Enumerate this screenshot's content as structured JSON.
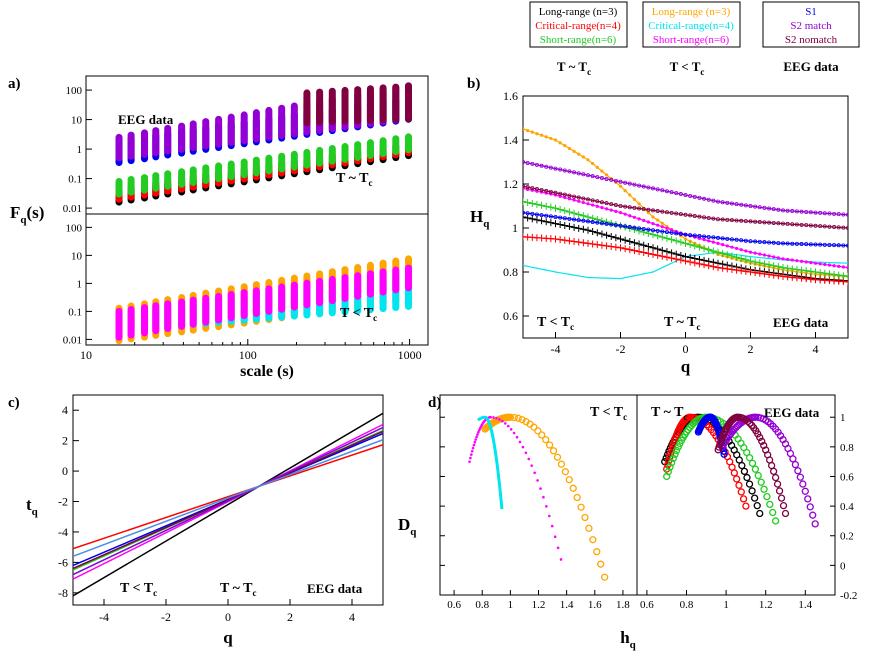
{
  "legend": {
    "t_sim": {
      "items": [
        {
          "label": "Long-range (n=3)",
          "color": "#000000"
        },
        {
          "label": "Critical-range(n=4)",
          "color": "#ff0000"
        },
        {
          "label": "Short-range(n=6)",
          "color": "#22cc22"
        }
      ],
      "caption_main": "T ~ T",
      "caption_sub": "c"
    },
    "t_low": {
      "items": [
        {
          "label": "Long-range (n=3)",
          "color": "#ffa500"
        },
        {
          "label": "Critical-range(n=4)",
          "color": "#00e5ee"
        },
        {
          "label": "Short-range(n=6)",
          "color": "#ff00ff"
        }
      ],
      "caption_main": "T < T",
      "caption_sub": "c"
    },
    "eeg": {
      "items": [
        {
          "label": "S1",
          "color": "#0000ee"
        },
        {
          "label": "S2 match",
          "color": "#9400d3"
        },
        {
          "label": "S2 nomatch",
          "color": "#800040"
        }
      ],
      "caption": "EEG data"
    }
  },
  "panel_labels": {
    "a": "a)",
    "b": "b)",
    "c": "c)",
    "d": "d)"
  },
  "chart_data": [
    {
      "id": "a",
      "type": "scatter",
      "xscale": "log",
      "yscale": "log",
      "xlabel": "scale (s)",
      "ylabel_main": "F",
      "ylabel_sub": "q",
      "ylabel_tail": "(s)",
      "xticks": [
        "10",
        "100",
        "1000"
      ],
      "scales": [
        16,
        19,
        23,
        27,
        32,
        39,
        46,
        55,
        66,
        79,
        95,
        113,
        135,
        162,
        194,
        232,
        278,
        333,
        399,
        478,
        573,
        686,
        822,
        985
      ],
      "top": {
        "yticks": [
          "0.01",
          "0.1",
          "1",
          "10",
          "100"
        ],
        "annotations": {
          "eeg": "EEG data",
          "temp_main": "T ~ T",
          "temp_sub": "c"
        },
        "series": [
          {
            "name": "S1",
            "color": "#0000ee",
            "x_from": 16,
            "min": [
              0.35,
              10.2
            ],
            "max": [
              1.9,
              52
            ]
          },
          {
            "name": "S2 match",
            "color": "#9400d3",
            "x_from": 16,
            "min": [
              0.5,
              11
            ],
            "max": [
              2.5,
              140
            ]
          },
          {
            "name": "S2 nomatch",
            "color": "#800040",
            "x_from": 200,
            "min": [
              4.5,
              10.5
            ],
            "max": [
              30,
              135
            ]
          },
          {
            "name": "Long-range (n=3)",
            "color": "#000000",
            "x_from": 16,
            "min": [
              0.016,
              0.6
            ],
            "max": [
              0.035,
              0.85
            ]
          },
          {
            "name": "Critical-range(n=4)",
            "color": "#ff0000",
            "x_from": 16,
            "min": [
              0.02,
              0.75
            ],
            "max": [
              0.045,
              1.5
            ]
          },
          {
            "name": "Short-range(n=6)",
            "color": "#22cc22",
            "x_from": 16,
            "min": [
              0.03,
              0.95
            ],
            "max": [
              0.08,
              2.6
            ]
          }
        ]
      },
      "bottom": {
        "yticks": [
          "0.01",
          "0.1",
          "1",
          "10",
          "100"
        ],
        "annotations": {
          "temp_main": "T < T",
          "temp_sub": "c"
        },
        "series": [
          {
            "name": "Long-range (n=3)",
            "color": "#ffa500",
            "x_from": 16,
            "min": [
              0.009,
              0.25
            ],
            "max": [
              0.13,
              7.5
            ]
          },
          {
            "name": "Critical-range(n=4)",
            "color": "#00e5ee",
            "x_from": 16,
            "min": [
              0.02,
              0.15
            ],
            "max": [
              0.07,
              1.8
            ]
          },
          {
            "name": "Short-range(n=6)",
            "color": "#ff00ff",
            "x_from": 16,
            "min": [
              0.012,
              0.7
            ],
            "max": [
              0.1,
              3.5
            ]
          }
        ]
      }
    },
    {
      "id": "b",
      "type": "line",
      "xlabel": "q",
      "ylabel_main": "H",
      "ylabel_sub": "q",
      "xlim": [
        -5,
        5
      ],
      "ylim": [
        0.5,
        1.6
      ],
      "xticks": [
        -4,
        -2,
        0,
        2,
        4
      ],
      "yticks": [
        "0.6",
        "0.8",
        "1",
        "1.2",
        "1.4",
        "1.6"
      ],
      "annotations": {
        "left_main": "T < T",
        "left_sub": "c",
        "mid_main": "T ~ T",
        "mid_sub": "c",
        "right": "EEG data"
      },
      "series": [
        {
          "name": "Long-range T<Tc",
          "color": "#ffa500",
          "marker": "dot",
          "x": [
            -5,
            -4,
            -3,
            -2,
            -1,
            0,
            1,
            2,
            3,
            4,
            5
          ],
          "y": [
            1.45,
            1.4,
            1.31,
            1.19,
            1.05,
            0.95,
            0.88,
            0.84,
            0.81,
            0.79,
            0.78
          ]
        },
        {
          "name": "Critical-range T<Tc",
          "color": "#00e5ee",
          "marker": "none",
          "x": [
            -5,
            -4,
            -3,
            -2,
            -1,
            0,
            1,
            2,
            3,
            4,
            5
          ],
          "y": [
            0.83,
            0.8,
            0.775,
            0.77,
            0.8,
            0.87,
            0.89,
            0.87,
            0.855,
            0.845,
            0.84
          ]
        },
        {
          "name": "Short-range T<Tc",
          "color": "#ff00ff",
          "marker": "dot",
          "x": [
            -5,
            -4,
            -3,
            -2,
            -1,
            0,
            1,
            2,
            3,
            4,
            5
          ],
          "y": [
            1.18,
            1.15,
            1.11,
            1.07,
            1.02,
            0.97,
            0.93,
            0.89,
            0.86,
            0.84,
            0.82
          ]
        },
        {
          "name": "Long-range T~Tc",
          "color": "#000000",
          "marker": "plus",
          "x": [
            -5,
            -4,
            -3,
            -2,
            -1,
            0,
            1,
            2,
            3,
            4,
            5
          ],
          "y": [
            1.05,
            1.02,
            0.99,
            0.95,
            0.91,
            0.87,
            0.84,
            0.81,
            0.79,
            0.77,
            0.76
          ]
        },
        {
          "name": "Critical-range T~Tc",
          "color": "#ff0000",
          "marker": "plus",
          "x": [
            -5,
            -4,
            -3,
            -2,
            -1,
            0,
            1,
            2,
            3,
            4,
            5
          ],
          "y": [
            0.96,
            0.95,
            0.93,
            0.91,
            0.88,
            0.85,
            0.82,
            0.8,
            0.78,
            0.765,
            0.755
          ]
        },
        {
          "name": "Short-range T~Tc",
          "color": "#22cc22",
          "marker": "plus",
          "x": [
            -5,
            -4,
            -3,
            -2,
            -1,
            0,
            1,
            2,
            3,
            4,
            5
          ],
          "y": [
            1.12,
            1.09,
            1.05,
            1.01,
            0.97,
            0.93,
            0.89,
            0.85,
            0.82,
            0.8,
            0.78
          ]
        },
        {
          "name": "S1",
          "color": "#0000ee",
          "marker": "circle",
          "x": [
            -5,
            -4,
            -3,
            -2,
            -1,
            0,
            1,
            2,
            3,
            4,
            5
          ],
          "y": [
            1.07,
            1.05,
            1.03,
            1.01,
            0.99,
            0.97,
            0.955,
            0.94,
            0.93,
            0.925,
            0.92
          ]
        },
        {
          "name": "S2 match",
          "color": "#9400d3",
          "marker": "circle",
          "x": [
            -5,
            -4,
            -3,
            -2,
            -1,
            0,
            1,
            2,
            3,
            4,
            5
          ],
          "y": [
            1.3,
            1.27,
            1.24,
            1.21,
            1.18,
            1.15,
            1.12,
            1.1,
            1.08,
            1.07,
            1.06
          ]
        },
        {
          "name": "S2 nomatch",
          "color": "#800040",
          "marker": "circle",
          "x": [
            -5,
            -4,
            -3,
            -2,
            -1,
            0,
            1,
            2,
            3,
            4,
            5
          ],
          "y": [
            1.19,
            1.16,
            1.13,
            1.1,
            1.08,
            1.06,
            1.04,
            1.03,
            1.02,
            1.01,
            1.0
          ]
        }
      ]
    },
    {
      "id": "c",
      "type": "line",
      "xlabel": "q",
      "ylabel_main": "t",
      "ylabel_sub": "q",
      "xlim": [
        -5,
        5
      ],
      "ylim": [
        -8.8,
        5
      ],
      "xticks": [
        -4,
        -2,
        0,
        2,
        4
      ],
      "yticks": [
        -8,
        -6,
        -4,
        -2,
        0,
        2,
        4
      ],
      "annotations": {
        "left_main": "T < T",
        "left_sub": "c",
        "mid_main": "T ~ T",
        "mid_sub": "c",
        "right": "EEG data"
      },
      "pivot": [
        1,
        -1
      ],
      "series": [
        {
          "name": "Long-range",
          "color": "#000000",
          "y_at_min": -8.2
        },
        {
          "name": "Short-range",
          "color": "#ff00ff",
          "y_at_min": -7.1
        },
        {
          "name": "Critical-range",
          "color": "#00e5ee",
          "y_at_min": -6.8
        },
        {
          "name": "Green",
          "color": "#22cc22",
          "y_at_min": -6.5
        },
        {
          "name": "S1",
          "color": "#0000ee",
          "y_at_min": -6.2
        },
        {
          "name": "S2 nomatch",
          "color": "#800040",
          "y_at_min": -6.4
        },
        {
          "name": "S2 match",
          "color": "#9400d3",
          "y_at_min": -6.8
        },
        {
          "name": "Critical-range T~Tc",
          "color": "#ff0000",
          "y_at_min": -5.1
        },
        {
          "name": "Light blue",
          "color": "#4a90e2",
          "y_at_min": -5.6
        }
      ]
    },
    {
      "id": "d",
      "type": "scatter",
      "xlabel_main": "h",
      "xlabel_sub": "q",
      "ylabel_main": "D",
      "ylabel_sub": "q",
      "left": {
        "xlim": [
          0.5,
          1.9
        ],
        "xticks": [
          "0.6",
          "0.8",
          "1",
          "1.2",
          "1.4",
          "1.6",
          "1.8"
        ],
        "annotation_main": "T < T",
        "annotation_sub": "c",
        "series": [
          {
            "name": "Long-range",
            "color": "#ffa500",
            "marker": "circle",
            "h0": 1.0,
            "hmin": 0.82,
            "hmax": 1.67,
            "dmin_left": 0.92,
            "dmin_right": -0.08
          },
          {
            "name": "Short-range",
            "color": "#ff00ff",
            "marker": "dot",
            "h0": 0.86,
            "hmin": 0.71,
            "hmax": 1.36,
            "dmin_left": 0.7,
            "dmin_right": 0.04
          },
          {
            "name": "Critical-range",
            "color": "#00e5ee",
            "marker": "line",
            "h0": 0.82,
            "hmin": 0.77,
            "hmax": 0.94,
            "dmin_left": 0.98,
            "dmin_right": 0.38
          }
        ]
      },
      "right": {
        "xlim": [
          0.55,
          1.55
        ],
        "xticks": [
          "0.6",
          "0.8",
          "1",
          "1.2",
          "1.4"
        ],
        "yticks": [
          "-0.2",
          "0",
          "0.2",
          "0.4",
          "0.6",
          "0.8",
          "1"
        ],
        "annotation_left_main": "T ~ T",
        "annotation_left_sub": "c",
        "annotation_right": "EEG data",
        "series": [
          {
            "name": "Long-range",
            "color": "#000000",
            "marker": "circle",
            "h0": 0.86,
            "hmin": 0.69,
            "hmax": 1.17,
            "dmin_left": 0.7,
            "dmin_right": 0.35
          },
          {
            "name": "Critical-range",
            "color": "#ff0000",
            "marker": "circle",
            "h0": 0.82,
            "hmin": 0.7,
            "hmax": 1.1,
            "dmin_left": 0.65,
            "dmin_right": 0.4
          },
          {
            "name": "Short-range",
            "color": "#22cc22",
            "marker": "circle",
            "h0": 0.9,
            "hmin": 0.7,
            "hmax": 1.25,
            "dmin_left": 0.6,
            "dmin_right": 0.3
          },
          {
            "name": "S1",
            "color": "#0000ee",
            "marker": "circle",
            "h0": 0.92,
            "hmin": 0.86,
            "hmax": 0.99,
            "dmin_left": 0.9,
            "dmin_right": 0.75
          },
          {
            "name": "S2 match",
            "color": "#9400d3",
            "marker": "circle",
            "h0": 1.15,
            "hmin": 0.98,
            "hmax": 1.45,
            "dmin_left": 0.8,
            "dmin_right": 0.28
          },
          {
            "name": "S2 nomatch",
            "color": "#800040",
            "marker": "circle",
            "h0": 1.06,
            "hmin": 0.96,
            "hmax": 1.3,
            "dmin_left": 0.78,
            "dmin_right": 0.35
          }
        ]
      }
    }
  ]
}
